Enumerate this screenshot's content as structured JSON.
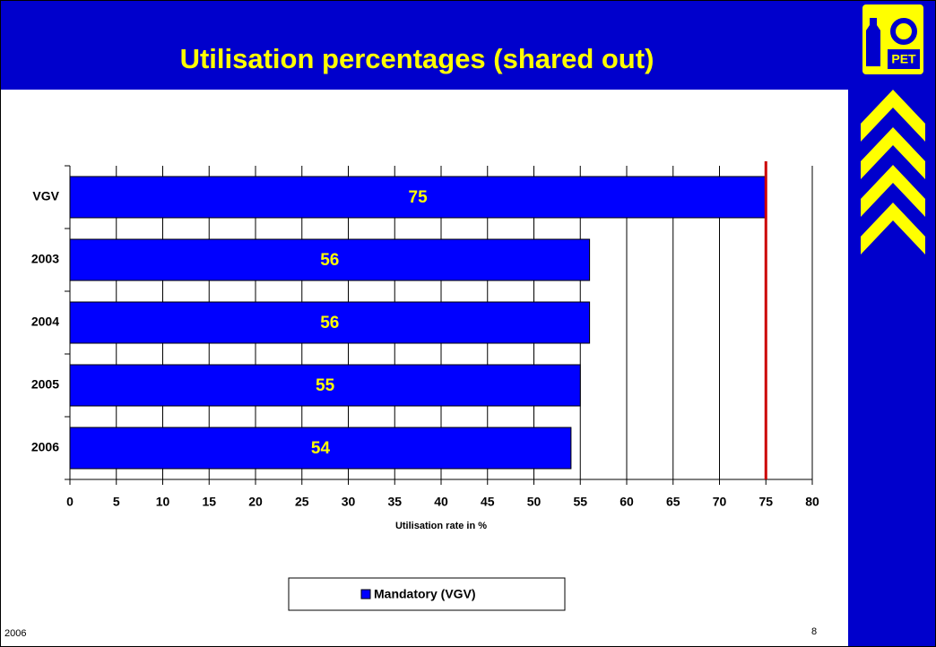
{
  "chart_data": {
    "type": "hbar",
    "title": "Utilisation percentages (shared out)",
    "x_label": "Utilisation rate in %",
    "categories": [
      "VGV",
      "2003",
      "2004",
      "2005",
      "2006"
    ],
    "series": [
      {
        "name": "Mandatory (VGV)",
        "color": "#0000ff",
        "values": [
          75,
          56,
          56,
          55,
          54
        ]
      }
    ],
    "xlim": [
      0,
      80
    ],
    "xticks": [
      0,
      5,
      10,
      15,
      20,
      25,
      30,
      35,
      40,
      45,
      50,
      55,
      60,
      65,
      70,
      75,
      80
    ],
    "grid": true,
    "legend": "bottom",
    "reference_line": {
      "value": 75,
      "color": "#cc0000"
    }
  },
  "footer": {
    "left": "2006",
    "page": "8"
  },
  "logo_text": "PET"
}
